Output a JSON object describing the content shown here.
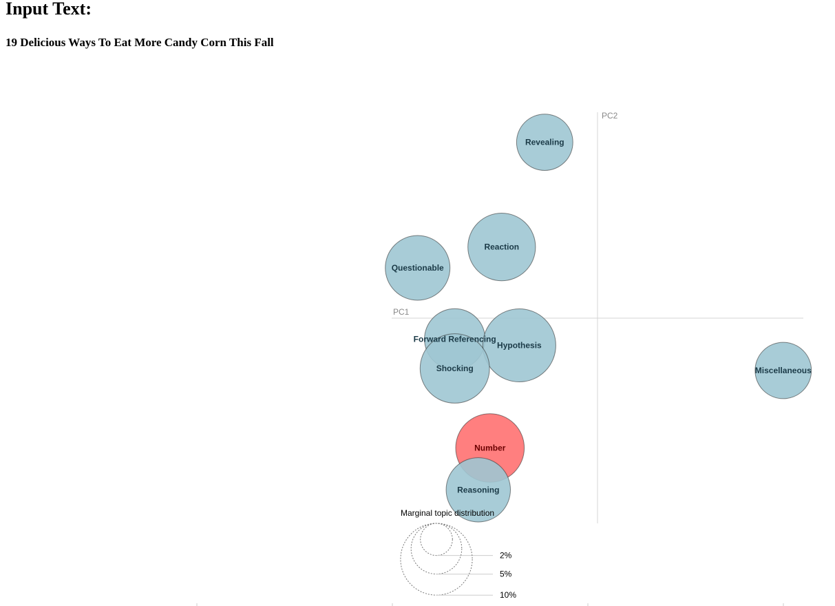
{
  "page": {
    "heading": "Input Text:",
    "input_text": "19 Delicious Ways To Eat More Candy Corn This Fall"
  },
  "chart_data": {
    "type": "scatter",
    "title": "",
    "xlabel": "PC1",
    "ylabel": "PC2",
    "colors": {
      "default": "#9ec7d3",
      "selected": "#ff7f7f",
      "default_text": "#1b3a47",
      "selected_text": "#6b0000"
    },
    "topics": [
      {
        "name": "Revealing",
        "x": -0.27,
        "y": 0.84,
        "size": 5.0,
        "selected": false
      },
      {
        "name": "Reaction",
        "x": -0.49,
        "y": 0.34,
        "size": 7.2,
        "selected": false
      },
      {
        "name": "Questionable",
        "x": -0.92,
        "y": 0.24,
        "size": 6.6,
        "selected": false
      },
      {
        "name": "Forward Referencing",
        "x": -0.73,
        "y": -0.1,
        "size": 5.8,
        "selected": false
      },
      {
        "name": "Hypothesis",
        "x": -0.4,
        "y": -0.13,
        "size": 8.4,
        "selected": false
      },
      {
        "name": "Shocking",
        "x": -0.73,
        "y": -0.24,
        "size": 7.6,
        "selected": false
      },
      {
        "name": "Miscellaneous",
        "x": 0.95,
        "y": -0.25,
        "size": 5.0,
        "selected": false
      },
      {
        "name": "Number",
        "x": -0.55,
        "y": -0.62,
        "size": 7.4,
        "selected": true
      },
      {
        "name": "Reasoning",
        "x": -0.61,
        "y": -0.82,
        "size": 6.5,
        "selected": false
      }
    ],
    "legend": {
      "title": "Marginal topic distribution",
      "levels": [
        {
          "label": "2%",
          "value": 2
        },
        {
          "label": "5%",
          "value": 5
        },
        {
          "label": "10%",
          "value": 10
        }
      ]
    }
  }
}
